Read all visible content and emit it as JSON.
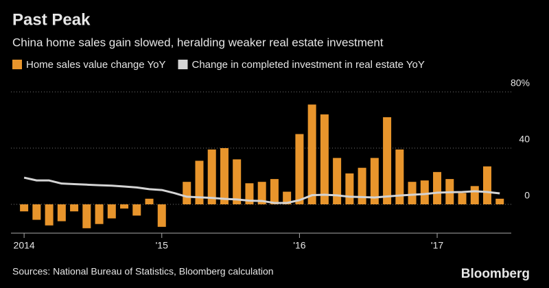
{
  "chart_data": {
    "type": "bar",
    "title": "Past Peak",
    "subtitle": "China home sales gain slowed, heralding weaker real estate investment",
    "source": "Sources: National Bureau of Statistics, Bloomberg calculation",
    "brand": "Bloomberg",
    "categories": [
      "2014",
      null,
      null,
      null,
      null,
      null,
      null,
      null,
      null,
      null,
      null,
      "'15",
      null,
      null,
      null,
      null,
      null,
      null,
      null,
      null,
      null,
      null,
      "'16",
      null,
      null,
      null,
      null,
      null,
      null,
      null,
      null,
      null,
      null,
      "'17",
      null,
      null,
      null,
      null,
      null
    ],
    "series": [
      {
        "name": "Home sales value change YoY",
        "color": "#e8952c",
        "type": "bar",
        "values": [
          -5,
          -11,
          -15,
          -12,
          -5,
          -17,
          -14,
          -10,
          -3,
          -8,
          4,
          -16,
          null,
          16,
          31,
          39,
          40,
          32,
          15,
          16,
          18,
          9,
          50,
          71,
          64,
          33,
          22,
          26,
          33,
          62,
          39,
          16,
          17,
          23,
          18,
          8,
          13,
          27,
          4
        ]
      },
      {
        "name": "Change in completed investment in real estate YoY",
        "color": "#d4d4d4",
        "type": "line",
        "values": [
          19,
          17,
          17,
          14.8,
          14.4,
          14,
          13.6,
          13.3,
          12.7,
          12,
          10.8,
          10.2,
          8,
          5.4,
          5,
          4.6,
          3.9,
          3.5,
          2.6,
          2.4,
          1,
          1,
          3,
          6.5,
          6.8,
          6.4,
          5.4,
          5.2,
          4.9,
          5.6,
          6.3,
          6.8,
          7.3,
          8.3,
          8.6,
          8.8,
          9.3,
          8.8,
          7.8
        ]
      }
    ],
    "ylim": [
      -20,
      80
    ],
    "yticks": [
      0,
      40,
      {
        "value": 80,
        "label": "80%"
      }
    ],
    "grid": true
  }
}
